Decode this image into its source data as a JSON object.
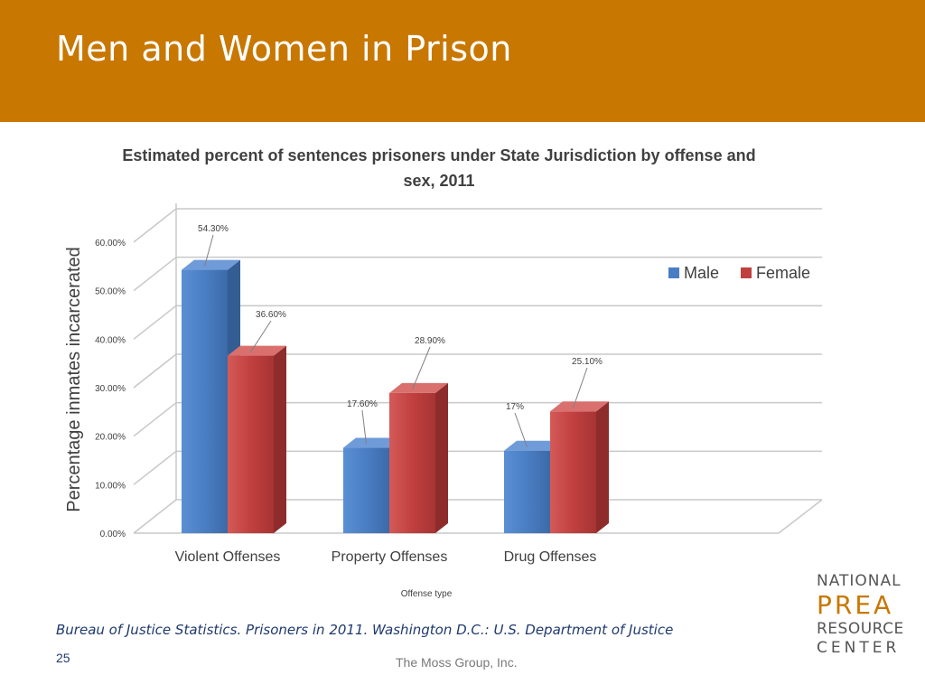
{
  "slide": {
    "title": "Men and Women in Prison",
    "source": "Bureau of Justice Statistics. Prisoners in 2011. Washington D.C.: U.S. Department of Justice",
    "page_number": "25",
    "footer": "The Moss Group, Inc.",
    "logo": {
      "line1": "NATIONAL",
      "line2": "PREA",
      "line3": "RESOURCE",
      "line4": "CENTER"
    }
  },
  "colors": {
    "header": "#c87700",
    "male": "#4a7ec4",
    "female": "#c0403f"
  },
  "chart_data": {
    "type": "bar",
    "title": "Estimated percent of sentences prisoners under State Jurisdiction by offense and sex, 2011",
    "xlabel": "Offense type",
    "ylabel": "Percentage inmates incarcerated",
    "categories": [
      "Violent Offenses",
      "Property Offenses",
      "Drug Offenses"
    ],
    "series": [
      {
        "name": "Male",
        "values": [
          54.3,
          17.6,
          17.0
        ],
        "labels": [
          "54.30%",
          "17.60%",
          "17%"
        ]
      },
      {
        "name": "Female",
        "values": [
          36.6,
          28.9,
          25.1
        ],
        "labels": [
          "36.60%",
          "28.90%",
          "25.10%"
        ]
      }
    ],
    "ylim": [
      0,
      60
    ],
    "yticks": [
      "0.00%",
      "10.00%",
      "20.00%",
      "30.00%",
      "40.00%",
      "50.00%",
      "60.00%"
    ],
    "grid": true,
    "legend": "right",
    "style": "3d"
  }
}
